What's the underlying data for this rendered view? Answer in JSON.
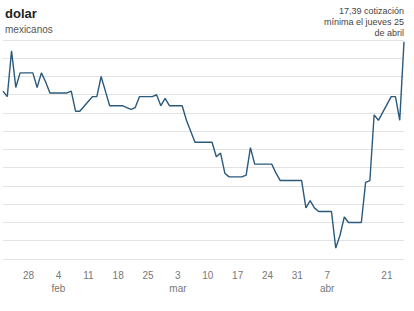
{
  "chart_data": {
    "type": "line",
    "title": "dolar",
    "subtitle": "mexicanos",
    "annotation": "17,39 cotización\nmínima el jueves 25\nde abril",
    "categories": [
      null,
      null,
      null,
      null,
      null,
      null,
      "28",
      null,
      null,
      null,
      null,
      null,
      null,
      "4\nfeb",
      null,
      null,
      null,
      null,
      null,
      null,
      "11",
      null,
      null,
      null,
      null,
      null,
      null,
      "18",
      null,
      null,
      null,
      null,
      null,
      null,
      "25",
      null,
      null,
      null,
      null,
      null,
      null,
      "3\nmar",
      null,
      null,
      null,
      null,
      null,
      null,
      "10",
      null,
      null,
      null,
      null,
      null,
      null,
      "17",
      null,
      null,
      null,
      null,
      null,
      null,
      "24",
      null,
      null,
      null,
      null,
      null,
      null,
      "31",
      null,
      null,
      null,
      null,
      null,
      null,
      "7\nabr",
      null,
      null,
      null,
      null,
      null,
      null,
      null,
      null,
      null,
      null,
      null,
      null,
      null,
      "21",
      null,
      null,
      null,
      null
    ],
    "values": [
      17.12,
      17.09,
      17.34,
      17.14,
      17.22,
      null,
      null,
      17.22,
      17.14,
      17.22,
      17.17,
      17.11,
      null,
      null,
      17.11,
      17.11,
      17.12,
      17.01,
      17.01,
      null,
      null,
      17.09,
      17.09,
      17.2,
      17.12,
      17.04,
      null,
      null,
      17.04,
      17.03,
      17.02,
      17.03,
      17.09,
      null,
      null,
      17.09,
      17.1,
      17.04,
      17.08,
      17.04,
      null,
      null,
      17.04,
      16.96,
      16.9,
      16.84,
      16.84,
      null,
      null,
      16.84,
      16.76,
      16.78,
      16.67,
      16.65,
      null,
      null,
      16.65,
      16.66,
      16.81,
      16.72,
      16.72,
      null,
      null,
      16.72,
      16.67,
      16.63,
      16.63,
      null,
      null,
      null,
      16.63,
      16.48,
      16.52,
      16.48,
      16.46,
      null,
      null,
      16.46,
      16.26,
      16.33,
      16.43,
      16.4,
      null,
      null,
      16.4,
      16.62,
      16.63,
      16.99,
      16.96,
      null,
      null,
      17.09,
      17.09,
      16.96,
      17.39
    ],
    "color": "#2b5a7d",
    "ylim": [
      16.2,
      17.4
    ],
    "yticks": [
      16.2,
      16.3,
      16.4,
      16.5,
      16.6,
      16.7,
      16.8,
      16.9,
      17.0,
      17.1,
      17.2,
      17.3,
      17.4
    ],
    "grid": true,
    "tick_labels": "x"
  }
}
